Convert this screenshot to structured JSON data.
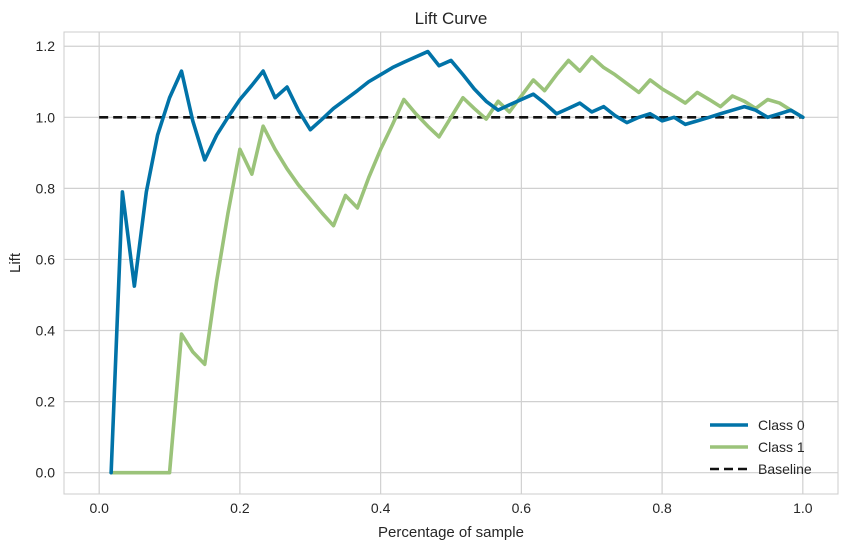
{
  "chart_data": {
    "type": "line",
    "title": "Lift Curve",
    "xlabel": "Percentage of sample",
    "ylabel": "Lift",
    "xlim": [
      -0.05,
      1.05
    ],
    "ylim": [
      -0.06,
      1.24
    ],
    "xticks": [
      0.0,
      0.2,
      0.4,
      0.6,
      0.8,
      1.0
    ],
    "xtick_labels": [
      "0.0",
      "0.2",
      "0.4",
      "0.6",
      "0.8",
      "1.0"
    ],
    "yticks": [
      0.0,
      0.2,
      0.4,
      0.6,
      0.8,
      1.0,
      1.2
    ],
    "ytick_labels": [
      "0.0",
      "0.2",
      "0.4",
      "0.6",
      "0.8",
      "1.0",
      "1.2"
    ],
    "grid": true,
    "legend_position": "bottom-right",
    "series": [
      {
        "name": "Class 0",
        "color": "#0173a8",
        "x": [
          0.017,
          0.033,
          0.05,
          0.067,
          0.083,
          0.1,
          0.117,
          0.133,
          0.15,
          0.167,
          0.183,
          0.2,
          0.217,
          0.233,
          0.25,
          0.267,
          0.283,
          0.3,
          0.317,
          0.333,
          0.35,
          0.367,
          0.383,
          0.4,
          0.417,
          0.433,
          0.45,
          0.467,
          0.483,
          0.5,
          0.517,
          0.533,
          0.55,
          0.567,
          0.583,
          0.6,
          0.617,
          0.633,
          0.65,
          0.667,
          0.683,
          0.7,
          0.717,
          0.733,
          0.75,
          0.767,
          0.783,
          0.8,
          0.817,
          0.833,
          0.85,
          0.867,
          0.883,
          0.9,
          0.917,
          0.933,
          0.95,
          0.967,
          0.983,
          1.0
        ],
        "y": [
          0.0,
          0.79,
          0.525,
          0.79,
          0.95,
          1.055,
          1.13,
          0.99,
          0.88,
          0.95,
          1.0,
          1.05,
          1.09,
          1.13,
          1.055,
          1.085,
          1.02,
          0.965,
          0.995,
          1.025,
          1.05,
          1.075,
          1.1,
          1.12,
          1.14,
          1.155,
          1.17,
          1.185,
          1.145,
          1.16,
          1.12,
          1.08,
          1.045,
          1.02,
          1.035,
          1.05,
          1.065,
          1.04,
          1.01,
          1.025,
          1.04,
          1.015,
          1.03,
          1.005,
          0.985,
          1.0,
          1.01,
          0.99,
          1.0,
          0.98,
          0.99,
          1.0,
          1.01,
          1.02,
          1.03,
          1.02,
          1.0,
          1.01,
          1.02,
          1.0
        ]
      },
      {
        "name": "Class 1",
        "color": "#9bc37a",
        "x": [
          0.017,
          0.033,
          0.05,
          0.067,
          0.083,
          0.1,
          0.117,
          0.133,
          0.15,
          0.167,
          0.183,
          0.2,
          0.217,
          0.233,
          0.25,
          0.267,
          0.283,
          0.3,
          0.317,
          0.333,
          0.35,
          0.367,
          0.383,
          0.4,
          0.417,
          0.433,
          0.45,
          0.467,
          0.483,
          0.5,
          0.517,
          0.533,
          0.55,
          0.567,
          0.583,
          0.6,
          0.617,
          0.633,
          0.65,
          0.667,
          0.683,
          0.7,
          0.717,
          0.733,
          0.75,
          0.767,
          0.783,
          0.8,
          0.817,
          0.833,
          0.85,
          0.867,
          0.883,
          0.9,
          0.917,
          0.933,
          0.95,
          0.967,
          0.983,
          1.0
        ],
        "y": [
          0.0,
          0.0,
          0.0,
          0.0,
          0.0,
          0.0,
          0.39,
          0.34,
          0.305,
          0.54,
          0.73,
          0.91,
          0.84,
          0.975,
          0.91,
          0.855,
          0.81,
          0.77,
          0.73,
          0.695,
          0.78,
          0.745,
          0.83,
          0.91,
          0.98,
          1.05,
          1.01,
          0.975,
          0.945,
          1.0,
          1.055,
          1.025,
          0.995,
          1.045,
          1.015,
          1.06,
          1.105,
          1.075,
          1.12,
          1.16,
          1.13,
          1.17,
          1.14,
          1.12,
          1.095,
          1.07,
          1.105,
          1.08,
          1.06,
          1.04,
          1.07,
          1.05,
          1.03,
          1.06,
          1.045,
          1.025,
          1.05,
          1.04,
          1.02,
          1.0
        ]
      },
      {
        "name": "Baseline",
        "color": "#111111",
        "dashed": true,
        "x": [
          0.0,
          1.0
        ],
        "y": [
          1.0,
          1.0
        ]
      }
    ]
  }
}
